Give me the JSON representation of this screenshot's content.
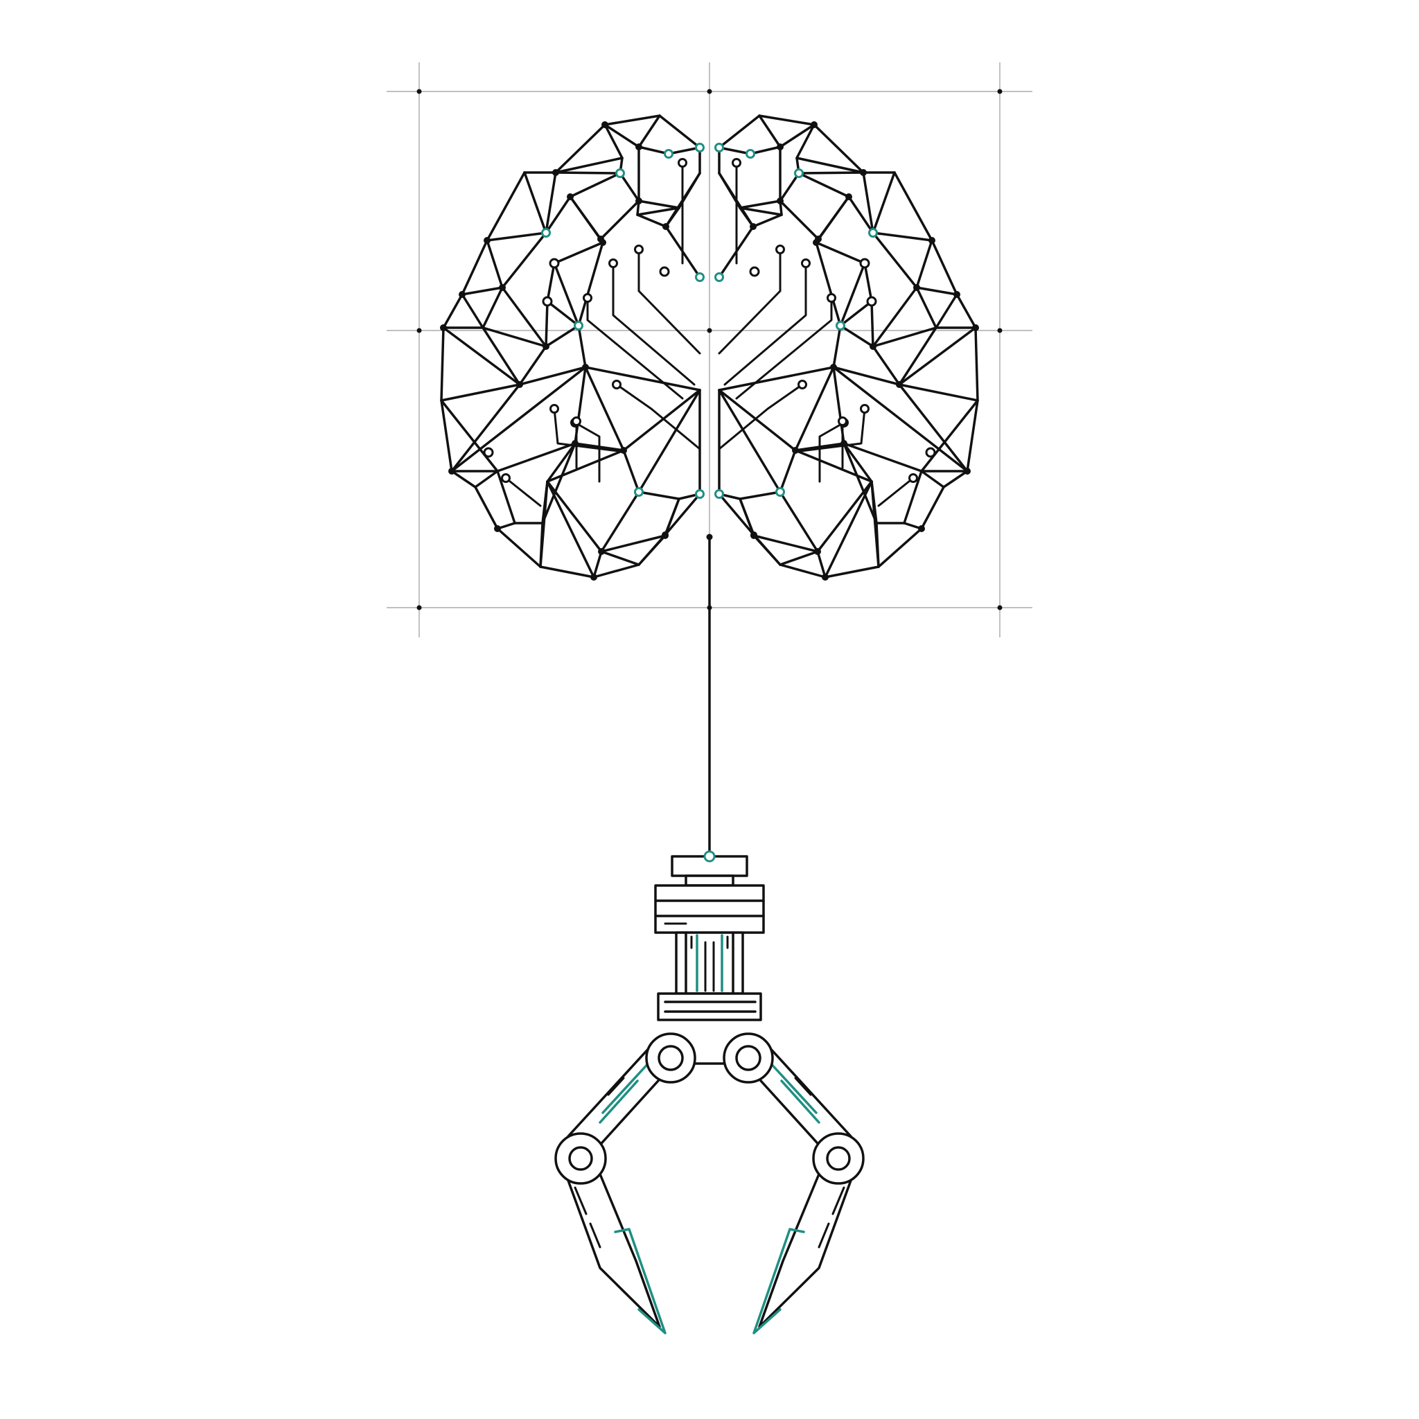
{
  "illustration": {
    "subject": "",
    "colors": {
      "ink": "#111111",
      "accent": "#1f8f83",
      "grid": "#9a9a9a",
      "background": "#ffffff"
    },
    "icons": [
      "brain-network-icon",
      "robotic-gripper-icon",
      "connector-cable-icon"
    ]
  }
}
